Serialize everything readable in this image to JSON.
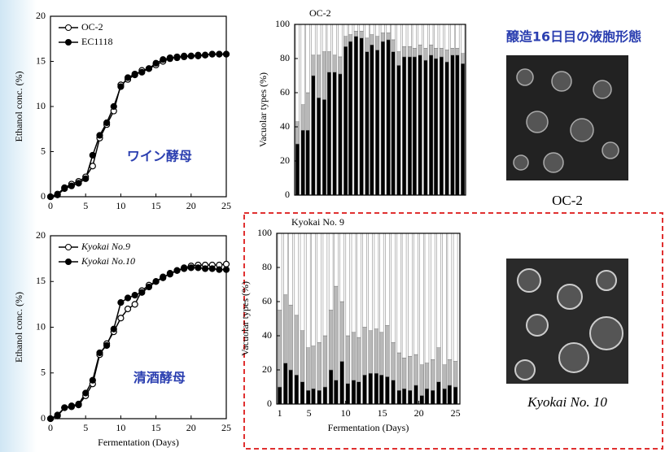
{
  "chart_data": [
    {
      "type": "line",
      "ylabel": "Ethanol conc. (%)",
      "annotation": "ワイン酵母",
      "annotation_color": "#2b3fb0",
      "x": [
        0,
        1,
        2,
        3,
        4,
        5,
        6,
        7,
        8,
        9,
        10,
        11,
        12,
        13,
        14,
        15,
        16,
        17,
        18,
        19,
        20,
        21,
        22,
        23,
        24,
        25
      ],
      "xlim": [
        0,
        25
      ],
      "xticks": [
        0,
        5,
        10,
        15,
        20,
        25
      ],
      "ylim": [
        0,
        20
      ],
      "yticks": [
        0,
        5,
        10,
        15,
        20
      ],
      "legend": "upper left",
      "series": [
        {
          "name": "OC-2",
          "color": "#000000",
          "fill": "#ffffff",
          "values": [
            0,
            0.3,
            1,
            1.4,
            1.7,
            2.2,
            3.4,
            6.5,
            8,
            9.5,
            12.4,
            13,
            13.5,
            14,
            14.2,
            14.6,
            15,
            15.3,
            15.5,
            15.5,
            15.6,
            15.7,
            15.7,
            15.8,
            15.8,
            15.8
          ]
        },
        {
          "name": "EC1118",
          "color": "#000000",
          "fill": "#000000",
          "values": [
            0,
            0.2,
            0.9,
            1.2,
            1.5,
            2,
            4.6,
            6.8,
            8.2,
            10,
            12.2,
            13.2,
            13.6,
            13.8,
            14.2,
            14.8,
            15.2,
            15.4,
            15.4,
            15.6,
            15.6,
            15.6,
            15.7,
            15.8,
            15.8,
            15.8
          ]
        }
      ]
    },
    {
      "type": "stacked_bar",
      "title": "OC-2",
      "ylabel": "Vacuolar types (%)",
      "x": [
        1,
        1.8,
        2.5,
        3.3,
        4.1,
        4.9,
        5.6,
        6.4,
        7.2,
        8,
        8.7,
        9.5,
        10.3,
        11.1,
        11.8,
        12.6,
        13.4,
        14.2,
        14.9,
        15.7,
        16.5,
        17.3,
        18,
        18.8,
        19.6,
        20.4,
        21.1,
        21.9,
        22.7,
        23.5,
        24.2,
        25
      ],
      "xlim": [
        0.6,
        25.4
      ],
      "ylim": [
        0,
        100
      ],
      "yticks": [
        0,
        20,
        40,
        60,
        80,
        100
      ],
      "series": [
        {
          "color": "#000000",
          "values": [
            30,
            38,
            38,
            70,
            57,
            56,
            72,
            72,
            71,
            87,
            90,
            93,
            92,
            84,
            88,
            85,
            90,
            91,
            84,
            76,
            81,
            81,
            81,
            82,
            79,
            82,
            80,
            81,
            78,
            82,
            82,
            77
          ]
        },
        {
          "color": "#b8b8b8",
          "values": [
            13,
            15,
            22,
            12,
            25,
            28,
            12,
            10,
            10,
            6,
            4,
            3,
            4,
            8,
            6,
            8,
            5,
            4,
            7,
            8,
            6,
            6,
            5,
            6,
            7,
            6,
            6,
            5,
            7,
            4,
            4,
            6
          ]
        },
        {
          "color": "#ffffff",
          "values": [
            57,
            47,
            40,
            18,
            18,
            16,
            16,
            18,
            19,
            7,
            6,
            4,
            4,
            8,
            6,
            7,
            5,
            5,
            9,
            16,
            13,
            13,
            14,
            12,
            14,
            12,
            14,
            14,
            15,
            14,
            14,
            17
          ]
        }
      ]
    },
    {
      "type": "line",
      "ylabel": "Ethanol conc. (%)",
      "xlabel": "Fermentation (Days)",
      "annotation": "清酒酵母",
      "annotation_color": "#2b3fb0",
      "x": [
        0,
        1,
        2,
        3,
        4,
        5,
        6,
        7,
        8,
        9,
        10,
        11,
        12,
        13,
        14,
        15,
        16,
        17,
        18,
        19,
        20,
        21,
        22,
        23,
        24,
        25
      ],
      "xlim": [
        0,
        25
      ],
      "xticks": [
        0,
        5,
        10,
        15,
        20,
        25
      ],
      "ylim": [
        0,
        20
      ],
      "yticks": [
        0,
        5,
        10,
        15,
        20
      ],
      "legend": "upper left",
      "series": [
        {
          "name": "Kyokai No.9",
          "color": "#000000",
          "fill": "#ffffff",
          "values": [
            0,
            0.4,
            1.2,
            1.3,
            1.5,
            2.5,
            3.8,
            7,
            8.2,
            9.5,
            11,
            12,
            12.5,
            14,
            14.6,
            15,
            15.5,
            15.8,
            16.2,
            16.5,
            16.7,
            16.8,
            16.8,
            16.8,
            16.8,
            16.9
          ]
        },
        {
          "name": "Kyokai No.10",
          "color": "#000000",
          "fill": "#000000",
          "values": [
            0,
            0.3,
            1.2,
            1.4,
            1.6,
            2.8,
            4.2,
            7.2,
            8,
            9.8,
            12.7,
            13.2,
            13.5,
            13.8,
            14.4,
            15,
            15.4,
            15.9,
            16.2,
            16.4,
            16.5,
            16.5,
            16.4,
            16.4,
            16.3,
            16.3
          ]
        }
      ]
    },
    {
      "type": "stacked_bar",
      "title": "Kyokai No. 9",
      "ylabel": "Vacuolar types (%)",
      "xlabel": "Fermentation (Days)",
      "x": [
        1,
        1.8,
        2.5,
        3.3,
        4.1,
        4.9,
        5.6,
        6.4,
        7.2,
        8,
        8.7,
        9.5,
        10.3,
        11.1,
        11.8,
        12.6,
        13.4,
        14.2,
        14.9,
        15.7,
        16.5,
        17.3,
        18,
        18.8,
        19.6,
        20.4,
        21.1,
        21.9,
        22.7,
        23.5,
        24.2,
        25
      ],
      "xlim": [
        0.6,
        25.6
      ],
      "xticks": [
        1,
        5,
        10,
        15,
        20,
        25
      ],
      "ylim": [
        0,
        100
      ],
      "yticks": [
        0,
        20,
        40,
        60,
        80,
        100
      ],
      "series": [
        {
          "color": "#000000",
          "values": [
            10,
            24,
            20,
            17,
            13,
            8,
            9,
            8,
            10,
            20,
            14,
            25,
            12,
            14,
            13,
            17,
            18,
            18,
            17,
            16,
            14,
            8,
            9,
            8,
            11,
            5,
            9,
            8,
            13,
            9,
            11,
            10
          ]
        },
        {
          "color": "#b8b8b8",
          "values": [
            45,
            40,
            38,
            35,
            30,
            25,
            25,
            28,
            30,
            35,
            55,
            35,
            28,
            28,
            26,
            28,
            25,
            26,
            25,
            30,
            22,
            22,
            18,
            20,
            18,
            18,
            15,
            18,
            20,
            14,
            15,
            15
          ]
        },
        {
          "color": "#ffffff",
          "values": [
            45,
            36,
            42,
            48,
            57,
            67,
            66,
            64,
            60,
            45,
            31,
            40,
            60,
            58,
            61,
            55,
            57,
            56,
            58,
            54,
            64,
            70,
            73,
            72,
            71,
            77,
            76,
            74,
            67,
            77,
            74,
            75
          ]
        }
      ]
    }
  ],
  "images": {
    "title": "醸造16日目の液胞形態",
    "captions": [
      "OC-2",
      "Kyokai No. 10"
    ]
  }
}
